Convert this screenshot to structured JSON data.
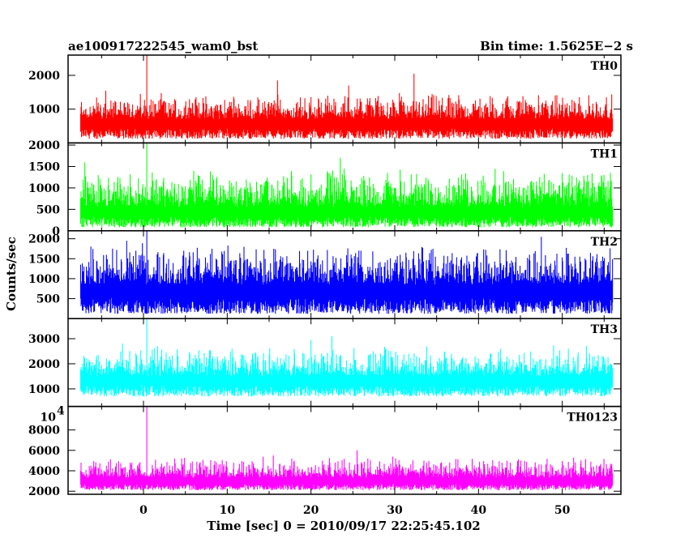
{
  "header": {
    "left_title": "ae100917222545_wam0_bst",
    "right_title": "Bin time: 1.5625E−2 s"
  },
  "chart_data": {
    "type": "line",
    "title": "ae100917222545_wam0_bst",
    "subtitle": "Bin time: 1.5625E−2 s",
    "xlabel": "Time [sec] 0 = 2010/09/17 22:25:45.102",
    "ylabel": "Counts/sec",
    "xlim": [
      -9,
      57
    ],
    "x_ticks": [
      0,
      10,
      20,
      30,
      40,
      50
    ],
    "x_tick_labels": [
      "0",
      "10",
      "20",
      "30",
      "40",
      "50"
    ],
    "data_range_x": [
      -7.5,
      56
    ],
    "bin_time": 0.015625,
    "grid": false,
    "panels": [
      {
        "name": "TH0",
        "color": "#ff0000",
        "ylim": [
          0,
          2600
        ],
        "y_ticks": [
          1000,
          2000
        ],
        "y_tick_labels": [
          "1000",
          "2000"
        ],
        "baseline": 120,
        "median": 700,
        "typical_max": 1350,
        "peak": 2600,
        "peak_at": 0.4,
        "notable_spikes": [
          [
            -4.5,
            1550
          ],
          [
            16,
            1850
          ],
          [
            32.3,
            2050
          ],
          [
            24.5,
            1700
          ]
        ]
      },
      {
        "name": "TH1",
        "color": "#00ff00",
        "ylim": [
          0,
          2050
        ],
        "y_ticks": [
          0,
          500,
          1000,
          1500,
          2000
        ],
        "y_tick_labels": [
          "0",
          "500",
          "1000",
          "1500",
          "2000"
        ],
        "baseline": 80,
        "median": 550,
        "typical_max": 1300,
        "peak": 2050,
        "peak_at": 0.4,
        "notable_spikes": [
          [
            -7,
            1600
          ],
          [
            23.5,
            1700
          ],
          [
            6,
            1400
          ]
        ]
      },
      {
        "name": "TH2",
        "color": "#0000ff",
        "ylim": [
          0,
          2200
        ],
        "y_ticks": [
          500,
          1000,
          1500,
          2000
        ],
        "y_tick_labels": [
          "500",
          "1000",
          "1500",
          "2000"
        ],
        "baseline": 120,
        "median": 850,
        "typical_max": 1700,
        "peak": 2200,
        "peak_at": 0.4,
        "notable_spikes": [
          [
            -2,
            1950
          ],
          [
            47.5,
            2050
          ],
          [
            12,
            1800
          ]
        ]
      },
      {
        "name": "TH3",
        "color": "#00ffff",
        "ylim": [
          300,
          3800
        ],
        "y_ticks": [
          1000,
          2000,
          3000
        ],
        "y_tick_labels": [
          "1000",
          "2000",
          "3000"
        ],
        "baseline": 700,
        "median": 1500,
        "typical_max": 2500,
        "peak": 3800,
        "peak_at": 0.4,
        "notable_spikes": [
          [
            -2.5,
            2800
          ],
          [
            20,
            2950
          ],
          [
            22.5,
            3100
          ]
        ]
      },
      {
        "name": "TH0123",
        "color": "#ff00ff",
        "ylim": [
          1700,
          10300
        ],
        "y_ticks": [
          2000,
          4000,
          6000,
          8000
        ],
        "y_tick_labels": [
          "2000",
          "4000",
          "6000",
          "8000"
        ],
        "top_tick_label": {
          "base": "10",
          "exponent": "4"
        },
        "baseline": 2100,
        "median": 3300,
        "typical_max": 5000,
        "peak": 10300,
        "peak_at": 0.4,
        "notable_spikes": [
          [
            25.5,
            6000
          ],
          [
            15.5,
            5500
          ]
        ]
      }
    ]
  }
}
